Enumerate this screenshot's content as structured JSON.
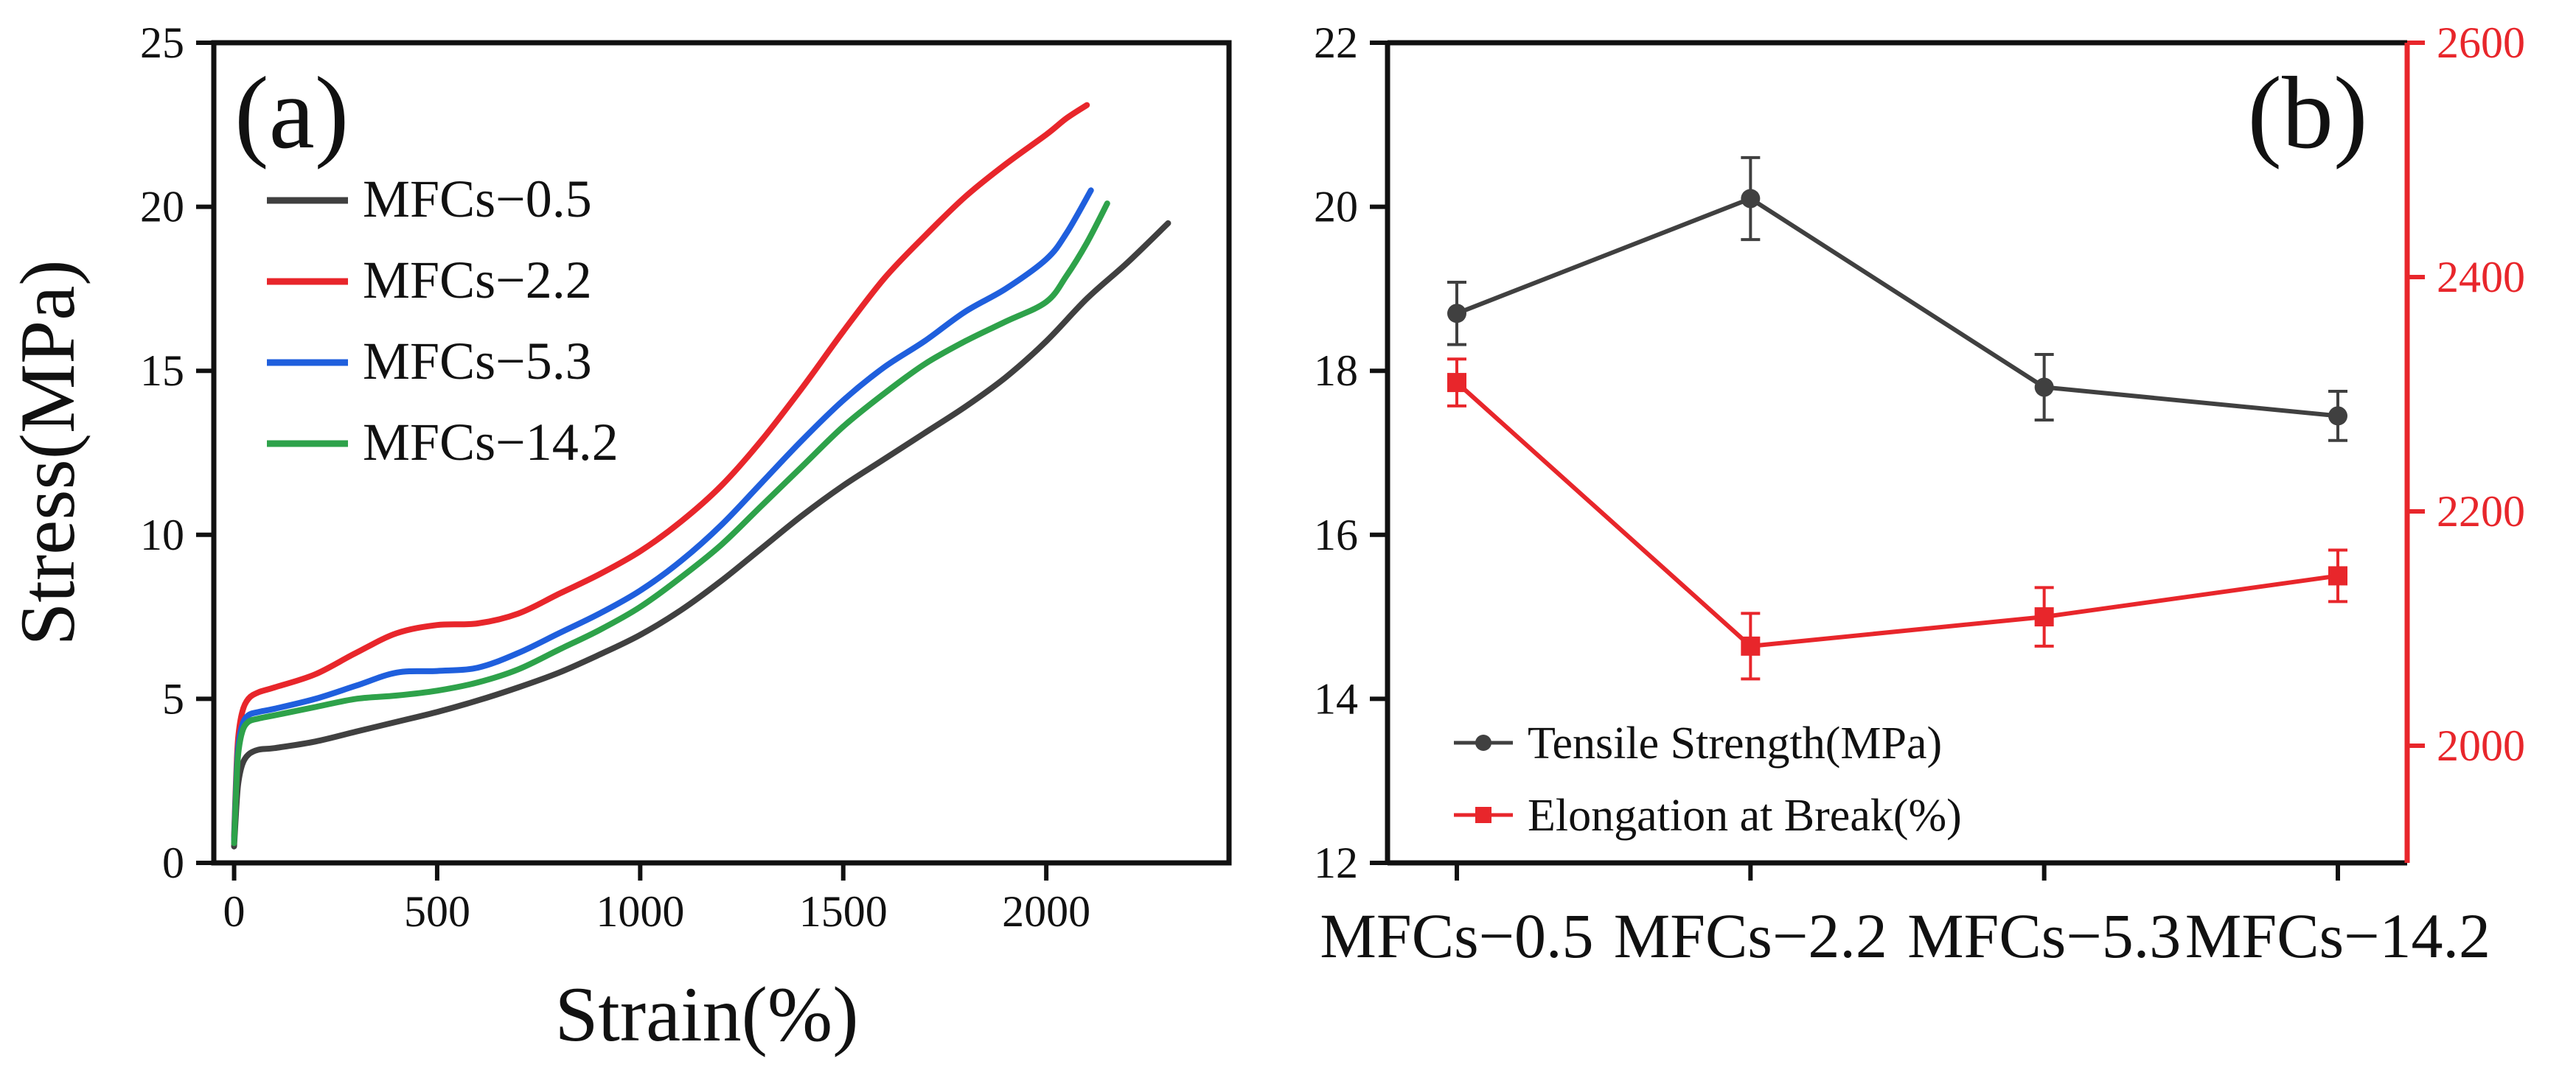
{
  "chart_data": [
    {
      "type": "line",
      "panel_label": "(a)",
      "xlabel": "Strain(%)",
      "ylabel": "Stress(MPa)",
      "xlim": [
        -50,
        2450
      ],
      "ylim": [
        0,
        25
      ],
      "xticks": [
        0,
        500,
        1000,
        1500,
        2000
      ],
      "yticks": [
        0,
        5,
        10,
        15,
        20,
        25
      ],
      "legend_position": "upper-left",
      "series": [
        {
          "name": "MFCs−0.5",
          "color": "#404040",
          "x": [
            0,
            5,
            10,
            20,
            35,
            60,
            100,
            200,
            300,
            400,
            500,
            600,
            700,
            800,
            900,
            1000,
            1100,
            1200,
            1300,
            1400,
            1500,
            1600,
            1700,
            1800,
            1900,
            2000,
            2100,
            2200,
            2300
          ],
          "y": [
            0.5,
            1.6,
            2.4,
            3.0,
            3.3,
            3.45,
            3.5,
            3.7,
            4.0,
            4.3,
            4.6,
            4.95,
            5.35,
            5.8,
            6.35,
            6.95,
            7.7,
            8.6,
            9.6,
            10.6,
            11.5,
            12.3,
            13.1,
            13.9,
            14.8,
            15.9,
            17.2,
            18.3,
            19.5
          ]
        },
        {
          "name": "MFCs−2.2",
          "color": "#e8262b",
          "x": [
            0,
            5,
            10,
            20,
            35,
            60,
            100,
            200,
            300,
            400,
            500,
            600,
            700,
            800,
            900,
            1000,
            1100,
            1200,
            1300,
            1400,
            1500,
            1600,
            1700,
            1800,
            1900,
            2000,
            2050,
            2100
          ],
          "y": [
            0.8,
            2.6,
            3.8,
            4.6,
            5.0,
            5.2,
            5.35,
            5.75,
            6.4,
            7.0,
            7.25,
            7.3,
            7.6,
            8.2,
            8.8,
            9.5,
            10.4,
            11.5,
            12.9,
            14.5,
            16.2,
            17.8,
            19.1,
            20.3,
            21.3,
            22.2,
            22.7,
            23.1
          ]
        },
        {
          "name": "MFCs−5.3",
          "color": "#1f5fdd",
          "x": [
            0,
            5,
            10,
            20,
            35,
            60,
            100,
            200,
            300,
            400,
            500,
            600,
            700,
            800,
            900,
            1000,
            1100,
            1200,
            1300,
            1400,
            1500,
            1600,
            1700,
            1800,
            1900,
            2000,
            2050,
            2110
          ],
          "y": [
            0.7,
            2.4,
            3.5,
            4.2,
            4.5,
            4.6,
            4.7,
            5.0,
            5.4,
            5.8,
            5.85,
            5.95,
            6.4,
            7.0,
            7.6,
            8.3,
            9.2,
            10.3,
            11.6,
            12.9,
            14.1,
            15.1,
            15.9,
            16.8,
            17.5,
            18.4,
            19.2,
            20.5
          ]
        },
        {
          "name": "MFCs−14.2",
          "color": "#2ea24a",
          "x": [
            0,
            5,
            10,
            20,
            35,
            60,
            100,
            200,
            300,
            400,
            500,
            600,
            700,
            800,
            900,
            1000,
            1100,
            1200,
            1300,
            1400,
            1500,
            1600,
            1700,
            1800,
            1900,
            2000,
            2050,
            2100,
            2150
          ],
          "y": [
            0.6,
            2.2,
            3.3,
            4.0,
            4.3,
            4.4,
            4.5,
            4.75,
            5.0,
            5.1,
            5.25,
            5.5,
            5.9,
            6.5,
            7.1,
            7.8,
            8.7,
            9.7,
            10.9,
            12.1,
            13.3,
            14.3,
            15.2,
            15.9,
            16.5,
            17.1,
            17.9,
            18.9,
            20.1
          ]
        }
      ]
    },
    {
      "type": "line",
      "panel_label": "(b)",
      "categories": [
        "MFCs−0.5",
        "MFCs−2.2",
        "MFCs−5.3",
        "MFCs−14.2"
      ],
      "ylim_left": [
        12,
        22
      ],
      "ylim_right": [
        1900,
        2600
      ],
      "yticks_left": [
        12,
        14,
        16,
        18,
        20,
        22
      ],
      "yticks_right": [
        2000,
        2200,
        2400,
        2600
      ],
      "legend_position": "lower-left",
      "series": [
        {
          "name": "Tensile Strength(MPa)",
          "axis": "left",
          "marker": "circle",
          "color": "#404040",
          "values": [
            18.7,
            20.1,
            17.8,
            17.45
          ],
          "errors": [
            0.38,
            0.5,
            0.4,
            0.3
          ]
        },
        {
          "name": "Elongation at Break(%)",
          "axis": "right",
          "marker": "square",
          "color": "#e8262b",
          "values": [
            2310,
            2085,
            2110,
            2145
          ],
          "errors": [
            20,
            28,
            25,
            22
          ]
        }
      ]
    }
  ]
}
